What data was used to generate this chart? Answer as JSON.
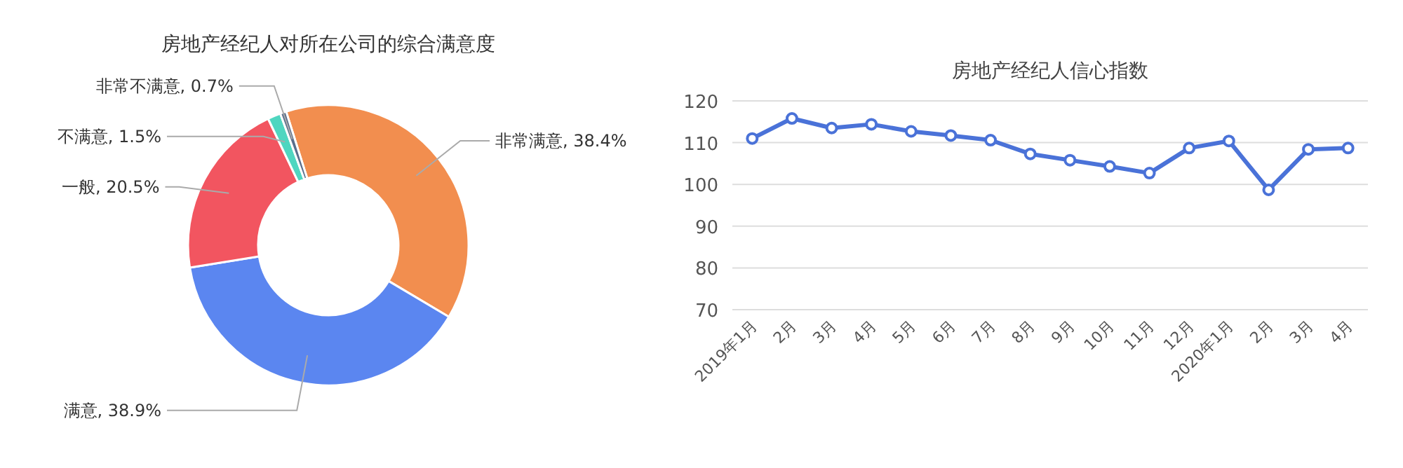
{
  "chart_data": [
    {
      "type": "donut",
      "title": "房地产经纪人对所在公司的综合满意度",
      "categories": [
        "非常满意",
        "满意",
        "一般",
        "不满意",
        "非常不满意"
      ],
      "values": [
        38.4,
        38.9,
        20.5,
        1.5,
        0.7
      ],
      "colors": [
        "#f28e4f",
        "#5b86f0",
        "#f25560",
        "#4fd6c0",
        "#5a6e8c"
      ],
      "value_labels": [
        "38.4%",
        "38.9%",
        "20.5%",
        "1.5%",
        "0.7%"
      ]
    },
    {
      "type": "line",
      "title": "房地产经纪人信心指数",
      "categories": [
        "2019年1月",
        "2月",
        "3月",
        "4月",
        "5月",
        "6月",
        "7月",
        "8月",
        "9月",
        "10月",
        "11月",
        "12月",
        "2020年1月",
        "2月",
        "3月",
        "4月"
      ],
      "series": [
        {
          "color": "#4a72d8",
          "values": [
            111.0,
            115.8,
            113.5,
            114.4,
            112.7,
            111.7,
            110.6,
            107.3,
            105.8,
            104.3,
            102.7,
            108.7,
            110.4,
            98.7,
            108.4,
            108.7
          ]
        }
      ],
      "ylim": [
        70,
        120
      ],
      "yticks": [
        70,
        80,
        90,
        100,
        110,
        120
      ],
      "grid": "y",
      "marker": "circle"
    }
  ]
}
